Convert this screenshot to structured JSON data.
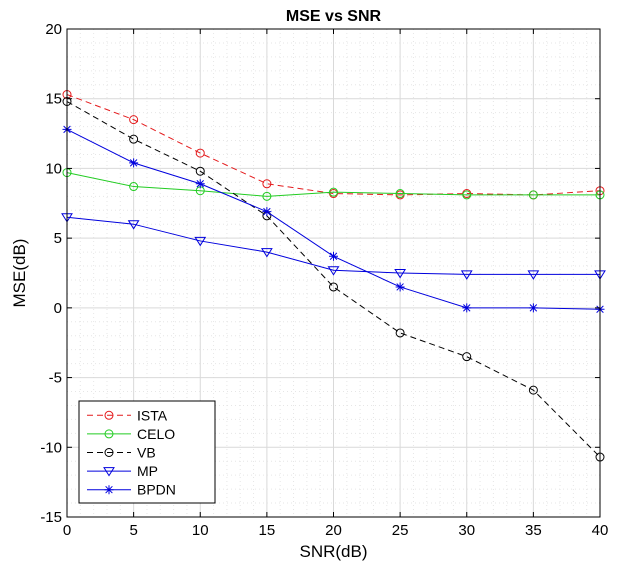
{
  "chart_data": {
    "type": "line",
    "title": "MSE vs SNR",
    "xlabel": "SNR(dB)",
    "ylabel": "MSE(dB)",
    "xlim": [
      0,
      40
    ],
    "ylim": [
      -15,
      20
    ],
    "xticks": [
      0,
      5,
      10,
      15,
      20,
      25,
      30,
      35,
      40
    ],
    "yticks": [
      -15,
      -10,
      -5,
      0,
      5,
      10,
      15,
      20
    ],
    "xtick_labels": [
      "0",
      "5",
      "10",
      "15",
      "20",
      "25",
      "30",
      "35",
      "40"
    ],
    "ytick_labels": [
      "-15",
      "-10",
      "-5",
      "0",
      "5",
      "10",
      "15",
      "20"
    ],
    "grid": true,
    "minor_grid": true,
    "legend_position": "bottom-left",
    "x": [
      0,
      5,
      10,
      15,
      20,
      25,
      30,
      35,
      40
    ],
    "series": [
      {
        "name": "ISTA",
        "color": "#e41a1c",
        "line_style": "dashed",
        "marker": "circle",
        "values": [
          15.3,
          13.5,
          11.1,
          8.9,
          8.2,
          8.1,
          8.2,
          8.1,
          8.4
        ]
      },
      {
        "name": "CELO",
        "color": "#22cc22",
        "line_style": "solid",
        "marker": "circle",
        "values": [
          9.7,
          8.7,
          8.4,
          8.0,
          8.3,
          8.2,
          8.1,
          8.1,
          8.1
        ]
      },
      {
        "name": "VB",
        "color": "#000000",
        "line_style": "dashed",
        "marker": "circle",
        "values": [
          14.8,
          12.1,
          9.8,
          6.6,
          1.5,
          -1.8,
          -3.5,
          -5.9,
          -10.7
        ]
      },
      {
        "name": "MP",
        "color": "#0000dd",
        "line_style": "solid",
        "marker": "triangle-down",
        "values": [
          6.5,
          6.0,
          4.8,
          4.0,
          2.7,
          2.5,
          2.4,
          2.4,
          2.4
        ]
      },
      {
        "name": "BPDN",
        "color": "#0000dd",
        "line_style": "solid",
        "marker": "asterisk",
        "values": [
          12.8,
          10.4,
          8.9,
          6.9,
          3.7,
          1.5,
          0.0,
          0.0,
          -0.1
        ]
      }
    ]
  }
}
